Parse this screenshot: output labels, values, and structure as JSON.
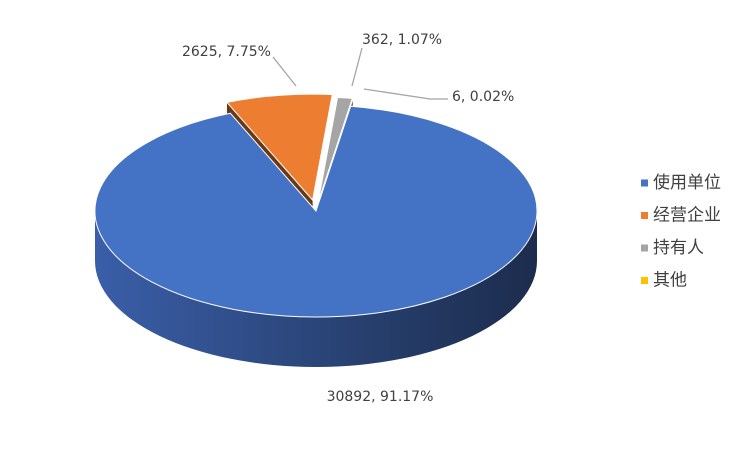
{
  "chart_data": {
    "type": "pie3d",
    "categories": [
      "使用单位",
      "经营企业",
      "持有人",
      "其他"
    ],
    "values": [
      30892,
      2625,
      362,
      6
    ],
    "value_labels": [
      "30892, 91.17%",
      "2625, 7.75%",
      "362, 1.07%",
      "6, 0.02%"
    ],
    "colors": [
      "#4472c4",
      "#ed7d31",
      "#a5a5a5",
      "#ffc000"
    ],
    "legend": "right"
  }
}
